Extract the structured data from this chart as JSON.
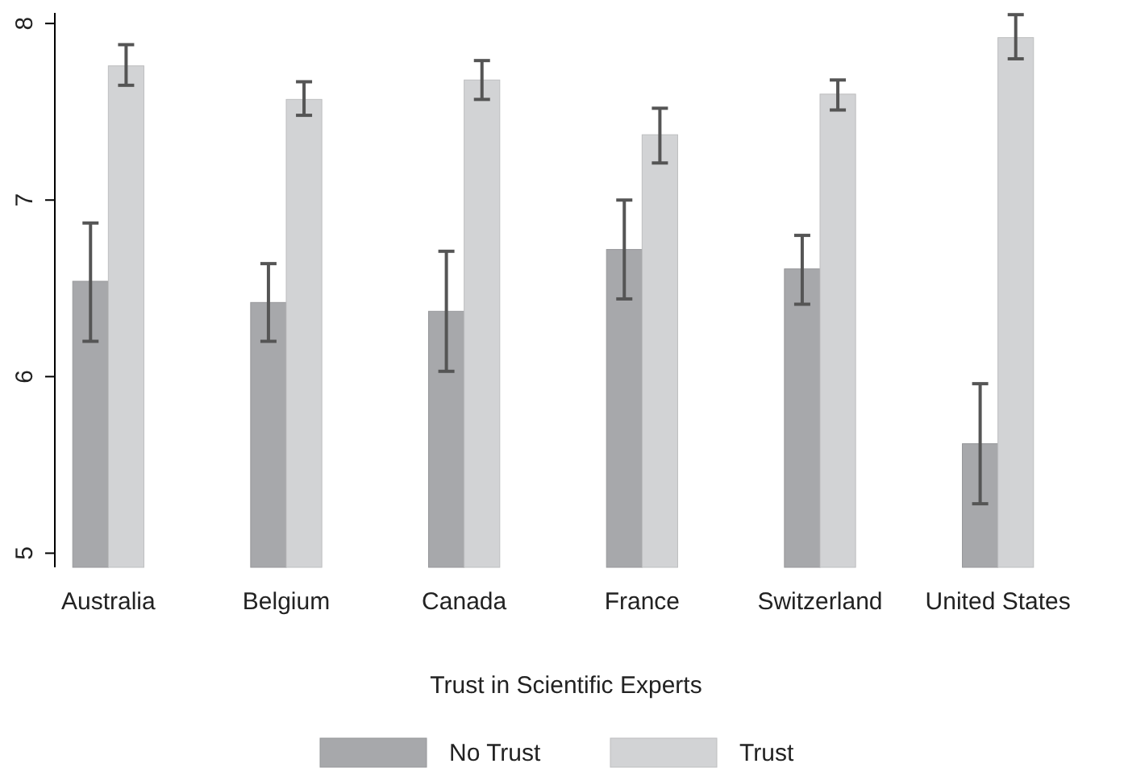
{
  "chart_data": {
    "type": "bar",
    "xlabel": "Trust in Scientific Experts",
    "categories": [
      "Australia",
      "Belgium",
      "Canada",
      "France",
      "Switzerland",
      "United States"
    ],
    "series": [
      {
        "name": "No Trust",
        "color": "#a7a8ab",
        "values": [
          6.54,
          6.42,
          6.37,
          6.72,
          6.61,
          5.62
        ],
        "errors": [
          [
            6.2,
            6.87
          ],
          [
            6.2,
            6.64
          ],
          [
            6.03,
            6.71
          ],
          [
            6.44,
            7.0
          ],
          [
            6.41,
            6.8
          ],
          [
            5.28,
            5.96
          ]
        ]
      },
      {
        "name": "Trust",
        "color": "#d2d3d5",
        "values": [
          7.76,
          7.57,
          7.68,
          7.37,
          7.6,
          7.92
        ],
        "errors": [
          [
            7.65,
            7.88
          ],
          [
            7.48,
            7.67
          ],
          [
            7.57,
            7.79
          ],
          [
            7.21,
            7.52
          ],
          [
            7.51,
            7.68
          ],
          [
            7.8,
            8.05
          ]
        ]
      }
    ],
    "ylim": [
      4.92,
      8.06
    ],
    "yticks": [
      5,
      6,
      7,
      8
    ],
    "grid": false,
    "legend": "bottom"
  }
}
